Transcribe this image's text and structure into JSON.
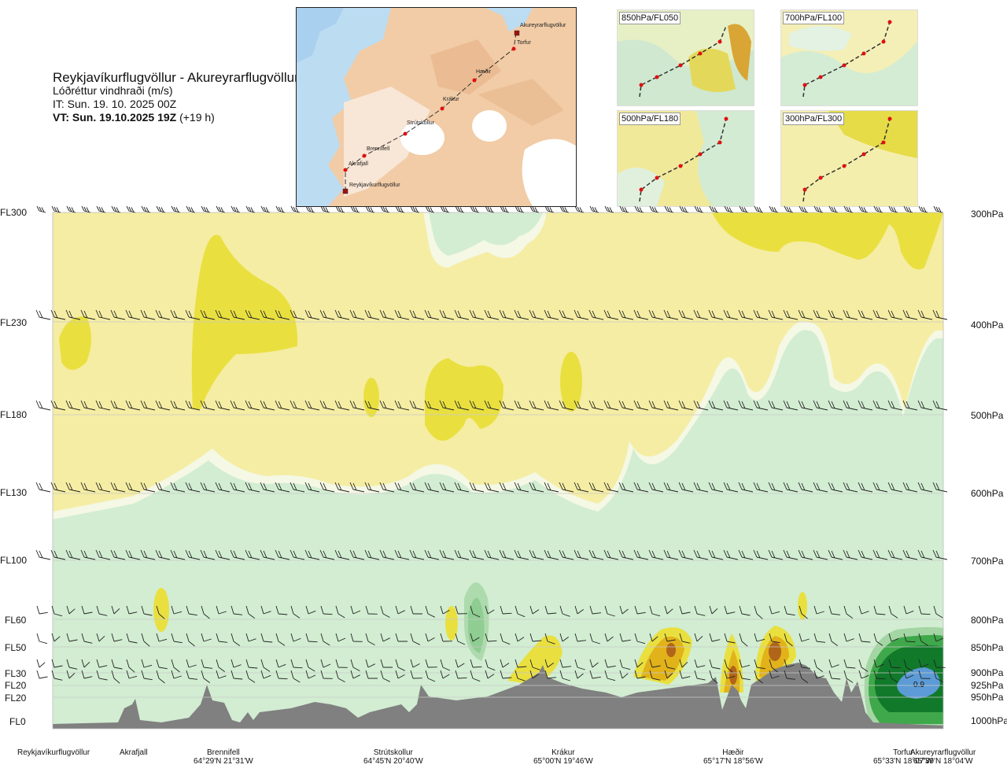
{
  "header": {
    "route": "Reykjavíkurflugvöllur - Akureyrarflugvöllur",
    "variable": "Lóðréttur vindhraði (m/s)",
    "issue_time": "IT: Sun. 19. 10. 2025 00Z",
    "valid_time_bold": "VT: Sun. 19.10.2025 19Z",
    "valid_time_offset": "(+19 h)"
  },
  "map": {
    "waypoints": [
      "Akureyrarflugvöllur",
      "Torfur",
      "Hæðir",
      "Krákur",
      "Strútskollur",
      "Brennifell",
      "Akrafjall",
      "Reykjavíkurflugvöllur"
    ]
  },
  "panels": [
    {
      "label": "850hPa/FL050"
    },
    {
      "label": "700hPa/FL100"
    },
    {
      "label": "500hPa/FL180"
    },
    {
      "label": "300hPa/FL300"
    }
  ],
  "colors": {
    "background_field": "#f5eda3",
    "updraft_light": "#e9e040",
    "updraft_strong": "#e2b21a",
    "updraft_max": "#b0651a",
    "downdraft_pale": "#f4f8e4",
    "downdraft_light": "#d2edd2",
    "downdraft_mid": "#a4d6a4",
    "downdraft_dark": "#3fa84a",
    "downdraft_darkest": "#117a2a",
    "downdraft_blue": "#5c9bd6",
    "terrain": "#808080"
  },
  "chart_data": {
    "type": "heatmap",
    "title": "Lóðréttur vindhraði (m/s)",
    "y_levels": [
      {
        "fl": "FL300",
        "hpa": "300hPa"
      },
      {
        "fl": "FL230",
        "hpa": "400hPa"
      },
      {
        "fl": "FL180",
        "hpa": "500hPa"
      },
      {
        "fl": "FL130",
        "hpa": "600hPa"
      },
      {
        "fl": "FL100",
        "hpa": "700hPa"
      },
      {
        "fl": "FL60",
        "hpa": "800hPa"
      },
      {
        "fl": "FL50",
        "hpa": "850hPa"
      },
      {
        "fl": "FL30",
        "hpa": "900hPa"
      },
      {
        "fl": "FL20",
        "hpa": "925hPa"
      },
      {
        "fl": "FL20",
        "hpa": "950hPa"
      },
      {
        "fl": "FL0",
        "hpa": "1000hPa"
      }
    ],
    "waypoints": [
      {
        "name": "Reykjavíkurflugvöllur",
        "coord": ""
      },
      {
        "name": "Akrafjall",
        "coord": ""
      },
      {
        "name": "Brennifell",
        "coord": "64°29'N 21°31'W"
      },
      {
        "name": "Strútskollur",
        "coord": "64°45'N 20°40'W"
      },
      {
        "name": "Krákur",
        "coord": "65°00'N 19°46'W"
      },
      {
        "name": "Hæðir",
        "coord": "65°17'N 18°56'W"
      },
      {
        "name": "Torfur",
        "coord": "65°33'N 18°07'W"
      },
      {
        "name": "Akureyrarflugvöllur",
        "coord": "65°39'N 18°04'W"
      }
    ],
    "annotations": [
      "0.9"
    ]
  }
}
